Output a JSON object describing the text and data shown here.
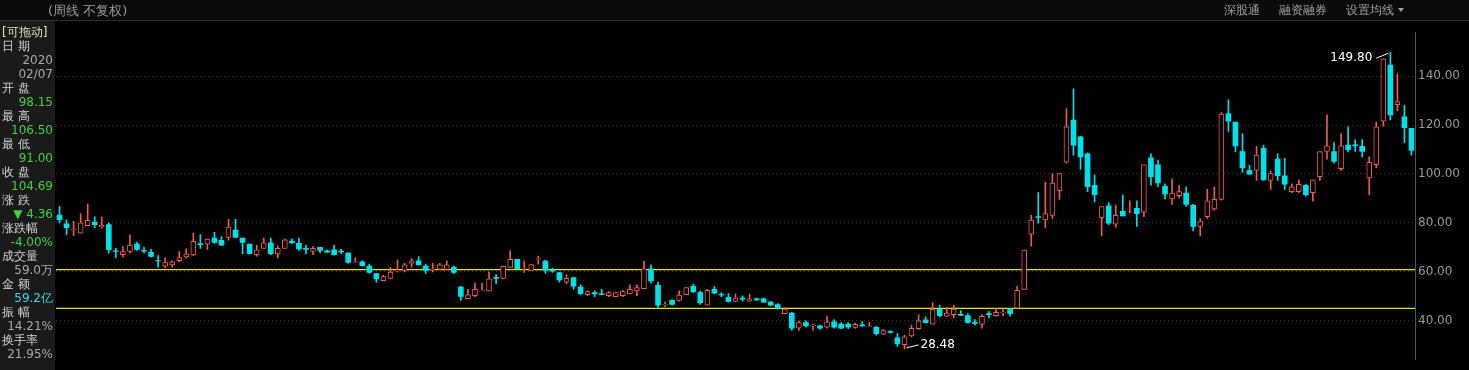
{
  "chart_data": {
    "type": "candlestick",
    "subtitle": "(周线 不复权)",
    "categories": [
      null,
      null,
      null,
      null,
      null,
      null,
      null,
      null,
      null,
      null,
      null,
      null,
      null,
      null,
      null,
      null,
      null,
      null,
      null,
      null,
      null,
      null,
      null,
      null,
      null,
      null,
      null,
      null,
      null,
      null,
      null,
      null,
      null,
      null,
      null,
      null,
      null,
      null,
      null,
      null,
      null,
      null,
      null,
      null,
      null,
      null,
      null,
      null,
      null,
      null,
      null,
      null,
      null,
      null,
      null,
      null,
      null,
      null,
      null,
      null,
      null,
      null,
      null,
      null,
      null,
      null,
      null,
      null,
      null,
      null,
      null,
      null,
      null,
      null,
      null,
      null,
      null,
      null,
      null,
      null,
      null,
      null,
      null,
      null,
      null,
      null,
      null,
      null,
      null,
      null,
      null,
      null,
      null,
      null,
      null,
      null,
      null,
      null,
      null,
      null,
      null,
      null,
      null,
      null,
      null,
      null,
      null,
      null,
      null,
      null,
      null,
      null,
      null,
      null,
      null,
      null,
      null,
      null,
      null,
      null,
      null,
      null,
      null,
      null,
      null,
      null,
      null,
      null,
      null,
      null,
      null,
      null,
      null,
      null,
      null,
      null,
      null,
      null,
      null,
      null,
      null,
      null,
      null,
      null,
      null,
      null,
      null,
      null,
      null,
      null,
      null,
      null,
      null,
      null,
      null,
      null,
      null,
      null,
      null,
      null,
      null,
      null,
      null,
      null,
      null,
      null,
      null,
      null,
      null,
      null,
      null,
      null,
      null,
      null,
      null,
      null,
      null,
      null,
      null,
      null,
      null,
      null,
      null,
      null,
      null,
      null,
      null,
      null,
      null,
      null,
      null,
      null,
      null
    ],
    "ohlc": [
      [
        83.2,
        86.8,
        80.0,
        81.3
      ],
      [
        79.6,
        81.3,
        75.2,
        78.0
      ],
      [
        77.2,
        80.6,
        74.8,
        77.6
      ],
      [
        75.8,
        83.8,
        75.8,
        80.0
      ],
      [
        78.9,
        87.7,
        78.9,
        81.0
      ],
      [
        80.3,
        82.5,
        78.0,
        79.3
      ],
      [
        78.4,
        82.5,
        77.8,
        79.0
      ],
      [
        79.3,
        80.0,
        67.7,
        69.0
      ],
      [
        68.6,
        69.6,
        65.8,
        68.3
      ],
      [
        67.0,
        70.3,
        66.1,
        68.3
      ],
      [
        68.3,
        75.1,
        67.7,
        70.9
      ],
      [
        71.3,
        72.2,
        68.7,
        69.2
      ],
      [
        68.8,
        70.0,
        67.7,
        68.4
      ],
      [
        68.0,
        69.2,
        66.0,
        66.3
      ],
      [
        64.6,
        66.6,
        61.9,
        64.4
      ],
      [
        62.3,
        65.7,
        61.6,
        63.8
      ],
      [
        62.8,
        64.5,
        61.9,
        64.1
      ],
      [
        64.5,
        68.3,
        64.1,
        65.8
      ],
      [
        66.1,
        69.4,
        65.7,
        67.3
      ],
      [
        66.9,
        75.8,
        66.6,
        72.5
      ],
      [
        71.5,
        75.2,
        69.6,
        71.1
      ],
      [
        71.3,
        73.4,
        69.2,
        73.4
      ],
      [
        73.8,
        76.1,
        71.6,
        72.0
      ],
      [
        72.9,
        74.4,
        70.7,
        70.9
      ],
      [
        74.1,
        81.5,
        72.9,
        78.3
      ],
      [
        77.1,
        81.5,
        74.1,
        74.1
      ],
      [
        73.8,
        73.8,
        67.3,
        72.0
      ],
      [
        71.3,
        71.3,
        67.3,
        67.4
      ],
      [
        67.0,
        70.9,
        66.4,
        69.0
      ],
      [
        69.6,
        73.8,
        69.6,
        71.8
      ],
      [
        71.8,
        73.8,
        67.0,
        67.4
      ],
      [
        67.3,
        70.5,
        65.7,
        69.6
      ],
      [
        69.6,
        73.5,
        69.6,
        73.1
      ],
      [
        72.6,
        73.5,
        71.6,
        71.8
      ],
      [
        71.6,
        73.8,
        68.7,
        69.4
      ],
      [
        69.6,
        70.9,
        67.3,
        69.2
      ],
      [
        68.3,
        70.3,
        67.0,
        69.6
      ],
      [
        70.0,
        70.0,
        67.7,
        68.7
      ],
      [
        68.6,
        69.0,
        67.9,
        68.0
      ],
      [
        69.0,
        70.9,
        66.8,
        67.0
      ],
      [
        68.5,
        69.2,
        67.4,
        68.1
      ],
      [
        67.7,
        67.9,
        63.5,
        63.8
      ],
      [
        64.0,
        65.7,
        63.8,
        64.2
      ],
      [
        64.1,
        64.5,
        62.3,
        62.5
      ],
      [
        62.3,
        63.2,
        59.3,
        59.7
      ],
      [
        59.3,
        59.3,
        55.8,
        57.1
      ],
      [
        56.4,
        58.6,
        56.4,
        58.0
      ],
      [
        57.3,
        61.9,
        57.1,
        59.9
      ],
      [
        60.4,
        64.8,
        59.9,
        60.6
      ],
      [
        60.6,
        63.5,
        59.9,
        62.8
      ],
      [
        63.5,
        65.4,
        61.9,
        64.5
      ],
      [
        64.5,
        66.1,
        62.8,
        62.8
      ],
      [
        62.3,
        63.2,
        59.3,
        60.6
      ],
      [
        60.8,
        63.5,
        59.9,
        61.1
      ],
      [
        61.0,
        63.5,
        61.0,
        62.8
      ],
      [
        61.0,
        64.5,
        61.0,
        62.8
      ],
      [
        61.9,
        62.3,
        59.3,
        59.7
      ],
      [
        53.7,
        54.1,
        48.3,
        49.9
      ],
      [
        49.0,
        52.8,
        49.0,
        50.6
      ],
      [
        50.2,
        55.4,
        49.8,
        52.8
      ],
      [
        52.3,
        55.4,
        52.2,
        52.5
      ],
      [
        52.2,
        59.9,
        52.2,
        57.1
      ],
      [
        57.7,
        58.9,
        55.0,
        57.3
      ],
      [
        57.3,
        62.2,
        57.1,
        62.2
      ],
      [
        61.8,
        68.7,
        61.8,
        65.1
      ],
      [
        65.1,
        65.1,
        61.2,
        61.2
      ],
      [
        61.1,
        64.4,
        59.7,
        61.3
      ],
      [
        60.6,
        63.1,
        60.6,
        62.9
      ],
      [
        65.2,
        66.4,
        63.1,
        65.4
      ],
      [
        64.4,
        64.7,
        59.3,
        60.6
      ],
      [
        60.7,
        61.5,
        59.7,
        60.3
      ],
      [
        59.7,
        59.7,
        55.8,
        56.7
      ],
      [
        55.8,
        58.9,
        55.0,
        57.3
      ],
      [
        57.6,
        57.6,
        52.8,
        54.1
      ],
      [
        53.7,
        54.7,
        50.6,
        51.1
      ],
      [
        50.6,
        52.2,
        50.2,
        51.9
      ],
      [
        51.5,
        52.2,
        49.8,
        50.9
      ],
      [
        51.0,
        52.8,
        50.6,
        50.6
      ],
      [
        50.2,
        51.9,
        49.8,
        51.5
      ],
      [
        49.8,
        51.5,
        49.8,
        51.5
      ],
      [
        50.2,
        52.4,
        49.8,
        51.9
      ],
      [
        50.9,
        54.7,
        50.9,
        52.8
      ],
      [
        52.2,
        54.7,
        50.2,
        53.5
      ],
      [
        53.1,
        64.4,
        53.1,
        61.2
      ],
      [
        61.2,
        62.8,
        55.4,
        56.3
      ],
      [
        54.5,
        55.8,
        45.1,
        46.3
      ],
      [
        46.6,
        47.6,
        45.7,
        46.8
      ],
      [
        48.3,
        48.5,
        46.3,
        46.7
      ],
      [
        48.3,
        52.2,
        48.0,
        50.5
      ],
      [
        50.6,
        53.5,
        50.6,
        53.5
      ],
      [
        54.1,
        55.0,
        51.5,
        51.9
      ],
      [
        51.5,
        52.2,
        46.7,
        47.4
      ],
      [
        46.3,
        52.8,
        46.3,
        52.4
      ],
      [
        52.8,
        54.1,
        50.9,
        51.3
      ],
      [
        50.8,
        51.5,
        49.8,
        50.5
      ],
      [
        49.6,
        51.1,
        47.6,
        47.9
      ],
      [
        47.9,
        50.9,
        47.9,
        49.3
      ],
      [
        49.2,
        50.2,
        48.0,
        48.8
      ],
      [
        48.0,
        50.9,
        48.0,
        48.9
      ],
      [
        48.9,
        49.3,
        48.3,
        48.5
      ],
      [
        48.9,
        49.3,
        47.4,
        47.6
      ],
      [
        47.6,
        47.9,
        46.0,
        46.3
      ],
      [
        46.6,
        47.0,
        44.7,
        45.1
      ],
      [
        42.9,
        45.4,
        42.9,
        44.7
      ],
      [
        43.1,
        43.4,
        36.0,
        36.9
      ],
      [
        36.9,
        39.9,
        36.0,
        39.2
      ],
      [
        39.2,
        39.9,
        37.3,
        37.9
      ],
      [
        37.9,
        38.6,
        36.0,
        38.1
      ],
      [
        37.9,
        38.2,
        36.4,
        36.9
      ],
      [
        37.3,
        41.8,
        36.9,
        39.5
      ],
      [
        39.5,
        40.5,
        36.9,
        37.3
      ],
      [
        38.6,
        39.2,
        36.7,
        36.9
      ],
      [
        38.6,
        39.2,
        36.7,
        37.3
      ],
      [
        37.2,
        38.9,
        36.9,
        38.5
      ],
      [
        38.3,
        39.6,
        37.7,
        37.9
      ],
      [
        37.6,
        39.2,
        37.4,
        37.8
      ],
      [
        37.3,
        37.7,
        34.1,
        34.7
      ],
      [
        34.5,
        36.4,
        34.3,
        36.0
      ],
      [
        35.5,
        36.0,
        35.0,
        35.1
      ],
      [
        33.0,
        34.7,
        29.5,
        30.5
      ],
      [
        30.2,
        34.1,
        28.48,
        33.4
      ],
      [
        33.8,
        38.2,
        33.4,
        36.9
      ],
      [
        36.7,
        42.5,
        36.4,
        39.9
      ],
      [
        40.3,
        41.6,
        39.0,
        39.2
      ],
      [
        38.6,
        47.3,
        38.6,
        44.7
      ],
      [
        44.7,
        46.3,
        41.6,
        42.1
      ],
      [
        41.8,
        45.4,
        41.6,
        43.1
      ],
      [
        42.5,
        46.3,
        41.2,
        44.7
      ],
      [
        42.6,
        44.1,
        42.1,
        42.2
      ],
      [
        42.1,
        42.9,
        39.0,
        39.2
      ],
      [
        39.3,
        40.5,
        38.2,
        38.9
      ],
      [
        38.6,
        42.5,
        36.9,
        41.8
      ],
      [
        42.9,
        43.8,
        41.2,
        42.5
      ],
      [
        42.1,
        45.1,
        41.8,
        43.4
      ],
      [
        43.2,
        44.7,
        42.1,
        43.4
      ],
      [
        44.7,
        45.1,
        41.8,
        42.9
      ],
      [
        45.1,
        54.1,
        45.1,
        52.4
      ],
      [
        52.8,
        68.9,
        52.8,
        68.9
      ],
      [
        75.4,
        83.1,
        70.5,
        81.2
      ],
      [
        82.6,
        92.4,
        79.9,
        82.2
      ],
      [
        81.2,
        96.7,
        78.0,
        83.8
      ],
      [
        83.1,
        100.2,
        81.8,
        96.3
      ],
      [
        93.2,
        100.2,
        89.6,
        100.2
      ],
      [
        104.8,
        126.8,
        104.4,
        119.3
      ],
      [
        122.1,
        134.8,
        107.7,
        111.8
      ],
      [
        115.2,
        115.4,
        101.9,
        107.0
      ],
      [
        108.3,
        108.7,
        92.8,
        94.8
      ],
      [
        95.4,
        99.7,
        88.6,
        91.5
      ],
      [
        82.1,
        86.7,
        74.7,
        86.7
      ],
      [
        87.0,
        88.3,
        79.3,
        79.9
      ],
      [
        79.5,
        87.3,
        78.2,
        83.1
      ],
      [
        84.7,
        91.5,
        82.9,
        82.9
      ],
      [
        86.0,
        89.0,
        84.2,
        86.2
      ],
      [
        86.0,
        89.0,
        78.6,
        83.8
      ],
      [
        84.4,
        103.8,
        82.5,
        103.8
      ],
      [
        106.6,
        108.3,
        95.4,
        98.9
      ],
      [
        103.8,
        105.7,
        94.8,
        96.3
      ],
      [
        95.0,
        96.0,
        89.8,
        91.9
      ],
      [
        89.8,
        98.0,
        87.6,
        92.2
      ],
      [
        91.1,
        95.4,
        90.2,
        92.8
      ],
      [
        92.2,
        94.8,
        86.7,
        87.6
      ],
      [
        87.2,
        87.6,
        76.7,
        78.6
      ],
      [
        78.6,
        81.8,
        74.7,
        80.5
      ],
      [
        82.5,
        93.7,
        81.8,
        89.0
      ],
      [
        85.7,
        94.8,
        85.1,
        89.6
      ],
      [
        89.6,
        125.1,
        89.3,
        124.5
      ],
      [
        124.7,
        130.3,
        117.4,
        121.6
      ],
      [
        121.2,
        121.2,
        109.0,
        111.5
      ],
      [
        109.2,
        116.5,
        100.6,
        102.5
      ],
      [
        101.5,
        103.5,
        99.7,
        99.9
      ],
      [
        101.5,
        111.3,
        97.4,
        107.7
      ],
      [
        110.5,
        111.8,
        97.4,
        97.6
      ],
      [
        97.4,
        101.2,
        93.7,
        100.2
      ],
      [
        106.1,
        108.3,
        97.4,
        99.3
      ],
      [
        99.3,
        106.4,
        93.7,
        95.8
      ],
      [
        92.8,
        96.0,
        92.4,
        94.8
      ],
      [
        92.8,
        97.6,
        92.4,
        95.8
      ],
      [
        95.4,
        95.8,
        90.9,
        91.5
      ],
      [
        92.4,
        97.6,
        88.9,
        97.6
      ],
      [
        98.9,
        109.2,
        97.4,
        109.2
      ],
      [
        109.2,
        124.2,
        106.1,
        111.5
      ],
      [
        109.2,
        112.8,
        104.4,
        105.1
      ],
      [
        102.2,
        116.5,
        101.5,
        111.5
      ],
      [
        111.8,
        119.3,
        109.0,
        110.0
      ],
      [
        111.9,
        114.1,
        109.2,
        111.5
      ],
      [
        111.3,
        114.1,
        107.0,
        109.2
      ],
      [
        98.4,
        107.0,
        91.5,
        104.8
      ],
      [
        103.8,
        121.2,
        102.5,
        119.3
      ],
      [
        121.6,
        147.1,
        119.6,
        147.1
      ],
      [
        144.5,
        149.8,
        122.1,
        124.2
      ],
      [
        128.4,
        141.0,
        125.8,
        129.6
      ],
      [
        123.4,
        128.1,
        112.8,
        119.0
      ],
      [
        118.7,
        118.7,
        107.7,
        109.6
      ]
    ],
    "colors": [
      "#00e0e8",
      "#00e0e8",
      "#f05a50",
      "#f05a50",
      "#f05a50",
      "#00e0e8",
      "#f05a50",
      "#00e0e8",
      "#00e0e8",
      "#f05a50",
      "#f05a50",
      "#00e0e8",
      "#00e0e8",
      "#00e0e8",
      "#00e0e8",
      "#f05a50",
      "#f05a50",
      "#f05a50",
      "#f05a50",
      "#f05a50",
      "#00e0e8",
      "#f05a50",
      "#00e0e8",
      "#00e0e8",
      "#f05a50",
      "#00e0e8",
      "#00e0e8",
      "#00e0e8",
      "#f05a50",
      "#f05a50",
      "#00e0e8",
      "#f05a50",
      "#f05a50",
      "#00e0e8",
      "#00e0e8",
      "#00e0e8",
      "#f05a50",
      "#00e0e8",
      "#00e0e8",
      "#00e0e8",
      "#00e0e8",
      "#00e0e8",
      "#f05a50",
      "#00e0e8",
      "#00e0e8",
      "#00e0e8",
      "#f05a50",
      "#f05a50",
      "#f05a50",
      "#f05a50",
      "#f05a50",
      "#00e0e8",
      "#00e0e8",
      "#f05a50",
      "#f05a50",
      "#f05a50",
      "#00e0e8",
      "#00e0e8",
      "#f05a50",
      "#f05a50",
      "#f05a50",
      "#f05a50",
      "#00e0e8",
      "#f05a50",
      "#f05a50",
      "#00e0e8",
      "#f05a50",
      "#f05a50",
      "#f05a50",
      "#00e0e8",
      "#00e0e8",
      "#00e0e8",
      "#f05a50",
      "#00e0e8",
      "#00e0e8",
      "#f05a50",
      "#00e0e8",
      "#00e0e8",
      "#f05a50",
      "#f05a50",
      "#f05a50",
      "#f05a50",
      "#f05a50",
      "#f05a50",
      "#00e0e8",
      "#00e0e8",
      "#f05a50",
      "#00e0e8",
      "#f05a50",
      "#f05a50",
      "#00e0e8",
      "#00e0e8",
      "#f05a50",
      "#00e0e8",
      "#00e0e8",
      "#00e0e8",
      "#f05a50",
      "#00e0e8",
      "#f05a50",
      "#00e0e8",
      "#00e0e8",
      "#00e0e8",
      "#00e0e8",
      "#f05a50",
      "#00e0e8",
      "#f05a50",
      "#00e0e8",
      "#f05a50",
      "#00e0e8",
      "#f05a50",
      "#00e0e8",
      "#00e0e8",
      "#00e0e8",
      "#f05a50",
      "#00e0e8",
      "#f05a50",
      "#00e0e8",
      "#f05a50",
      "#00e0e8",
      "#00e0e8",
      "#f05a50",
      "#f05a50",
      "#f05a50",
      "#00e0e8",
      "#f05a50",
      "#00e0e8",
      "#f05a50",
      "#f05a50",
      "#00e0e8",
      "#00e0e8",
      "#00e0e8",
      "#f05a50",
      "#00e0e8",
      "#f05a50",
      "#f05a50",
      "#00e0e8",
      "#f05a50",
      "#f05a50",
      "#f05a50",
      "#00e0e8",
      "#f05a50",
      "#f05a50",
      "#f05a50",
      "#f05a50",
      "#00e0e8",
      "#00e0e8",
      "#00e0e8",
      "#00e0e8",
      "#f05a50",
      "#00e0e8",
      "#f05a50",
      "#00e0e8",
      "#f05a50",
      "#00e0e8",
      "#f05a50",
      "#00e0e8",
      "#00e0e8",
      "#00e0e8",
      "#f05a50",
      "#f05a50",
      "#00e0e8",
      "#00e0e8",
      "#f05a50",
      "#f05a50",
      "#f05a50",
      "#f05a50",
      "#00e0e8",
      "#00e0e8",
      "#00e0e8",
      "#00e0e8",
      "#f05a50",
      "#00e0e8",
      "#f05a50",
      "#00e0e8",
      "#00e0e8",
      "#f05a50",
      "#f05a50",
      "#00e0e8",
      "#f05a50",
      "#f05a50",
      "#f05a50",
      "#00e0e8",
      "#f05a50",
      "#00e0e8",
      "#00e0e8",
      "#00e0e8",
      "#f05a50",
      "#f05a50",
      "#f05a50",
      "#00e0e8",
      "#f05a50",
      "#00e0e8",
      "#00e0e8"
    ],
    "ylim": [
      24,
      158
    ],
    "yticks": [
      {
        "value": 40,
        "label": "40.00"
      },
      {
        "value": 60,
        "label": "60.00"
      },
      {
        "value": 80,
        "label": "80.00"
      },
      {
        "value": 100,
        "label": "100.00"
      },
      {
        "value": 120,
        "label": "120.00"
      },
      {
        "value": 140,
        "label": "140.00"
      }
    ],
    "tick_labels": "y",
    "grid": "y",
    "ref_lines": [
      {
        "axis": "y",
        "value": 60.9,
        "color": "#e6e600"
      },
      {
        "axis": "y",
        "value": 45.0,
        "color": "#e6e600"
      }
    ],
    "annotations": [
      "深股通",
      "融资融券",
      "设置均线",
      "[可拖动]",
      "日 期",
      "2020",
      "02/07",
      "开 盘",
      "98.15",
      "最 高",
      "106.50",
      "最 低",
      "91.00",
      "收 盘",
      "104.69",
      "涨 跌",
      "▼ 4.36",
      "涨跌幅",
      "-4.00%",
      "成交量",
      "59.0万",
      "金 额",
      "59.2亿",
      "振 幅",
      "14.21%",
      "换手率",
      "21.95%",
      "149.80",
      "28.48"
    ]
  }
}
